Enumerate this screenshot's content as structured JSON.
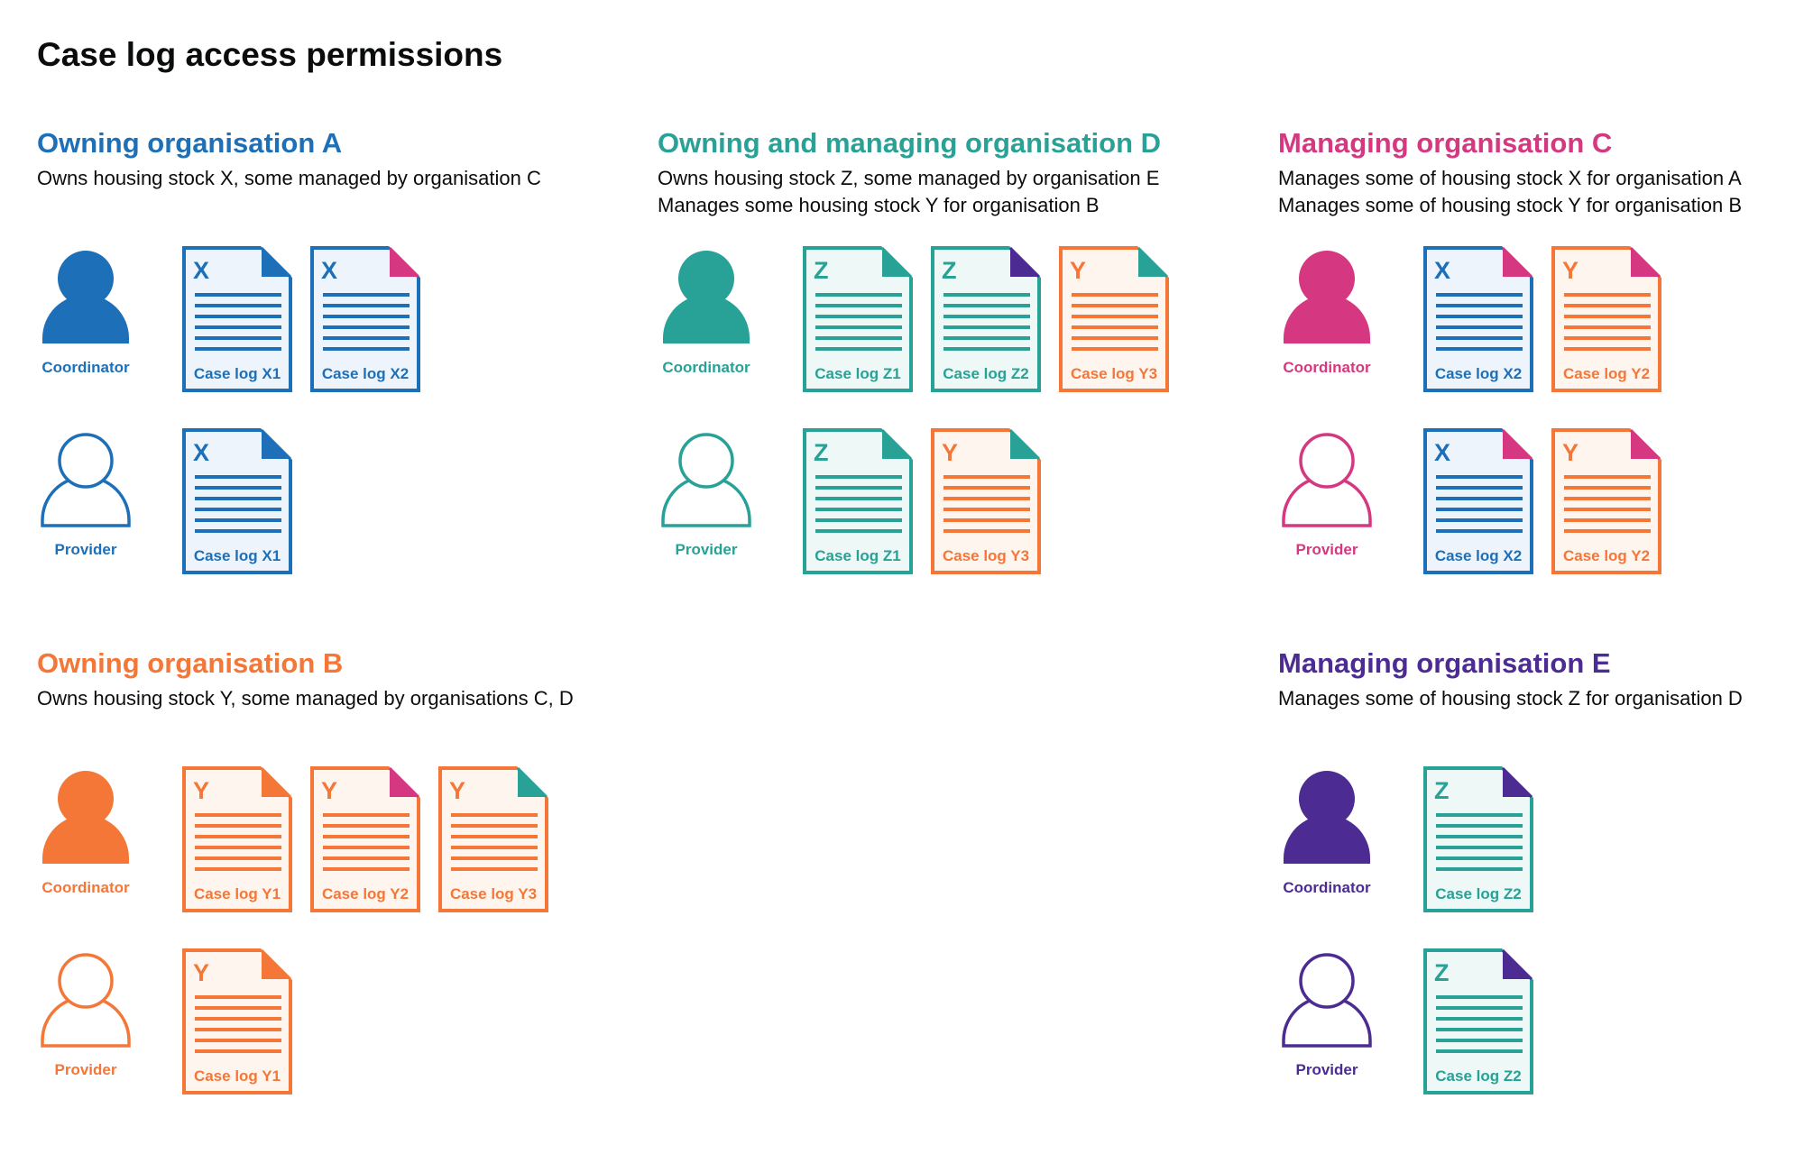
{
  "title": "Case log access permissions",
  "colors": {
    "blue": "#1d70b8",
    "teal": "#28a197",
    "pink": "#d53880",
    "orange": "#f47738",
    "purple": "#4c2c92",
    "tints": {
      "#1d70b8": "#eef4fb",
      "#28a197": "#eef8f6",
      "#d53880": "#fdf0f5",
      "#f47738": "#fef5ef",
      "#4c2c92": "#f2eff8"
    }
  },
  "sections": [
    {
      "heading": "Owning organisation A",
      "color": "#1d70b8",
      "description": [
        "Owns housing stock X, some managed by organisation C"
      ],
      "roles": [
        {
          "label": "Coordinator",
          "icon": "person-filled",
          "docs": [
            {
              "letter": "X",
              "label": "Case log X1",
              "color": "#1d70b8",
              "corner": "#1d70b8"
            },
            {
              "letter": "X",
              "label": "Case log X2",
              "color": "#1d70b8",
              "corner": "#d53880"
            }
          ]
        },
        {
          "label": "Provider",
          "icon": "person-outline",
          "docs": [
            {
              "letter": "X",
              "label": "Case log X1",
              "color": "#1d70b8",
              "corner": "#1d70b8"
            }
          ]
        }
      ]
    },
    {
      "heading": "Owning and managing organisation D",
      "color": "#28a197",
      "description": [
        "Owns housing stock Z, some managed by organisation E",
        "Manages some housing stock Y for organisation B"
      ],
      "roles": [
        {
          "label": "Coordinator",
          "icon": "person-filled",
          "docs": [
            {
              "letter": "Z",
              "label": "Case log Z1",
              "color": "#28a197",
              "corner": "#28a197"
            },
            {
              "letter": "Z",
              "label": "Case log Z2",
              "color": "#28a197",
              "corner": "#4c2c92"
            },
            {
              "letter": "Y",
              "label": "Case log Y3",
              "color": "#f47738",
              "corner": "#28a197"
            }
          ]
        },
        {
          "label": "Provider",
          "icon": "person-outline",
          "docs": [
            {
              "letter": "Z",
              "label": "Case log Z1",
              "color": "#28a197",
              "corner": "#28a197"
            },
            {
              "letter": "Y",
              "label": "Case log Y3",
              "color": "#f47738",
              "corner": "#28a197"
            }
          ]
        }
      ]
    },
    {
      "heading": "Managing organisation C",
      "color": "#d53880",
      "description": [
        "Manages some of housing stock X for organisation A",
        "Manages some of housing stock Y for organisation B"
      ],
      "roles": [
        {
          "label": "Coordinator",
          "icon": "person-filled",
          "docs": [
            {
              "letter": "X",
              "label": "Case log X2",
              "color": "#1d70b8",
              "corner": "#d53880"
            },
            {
              "letter": "Y",
              "label": "Case log Y2",
              "color": "#f47738",
              "corner": "#d53880"
            }
          ]
        },
        {
          "label": "Provider",
          "icon": "person-outline",
          "docs": [
            {
              "letter": "X",
              "label": "Case log X2",
              "color": "#1d70b8",
              "corner": "#d53880"
            },
            {
              "letter": "Y",
              "label": "Case log Y2",
              "color": "#f47738",
              "corner": "#d53880"
            }
          ]
        }
      ]
    },
    {
      "heading": "Owning organisation B",
      "color": "#f47738",
      "description": [
        "Owns housing stock Y, some managed by organisations C, D"
      ],
      "roles": [
        {
          "label": "Coordinator",
          "icon": "person-filled",
          "docs": [
            {
              "letter": "Y",
              "label": "Case log Y1",
              "color": "#f47738",
              "corner": "#f47738"
            },
            {
              "letter": "Y",
              "label": "Case log Y2",
              "color": "#f47738",
              "corner": "#d53880"
            },
            {
              "letter": "Y",
              "label": "Case log Y3",
              "color": "#f47738",
              "corner": "#28a197"
            }
          ]
        },
        {
          "label": "Provider",
          "icon": "person-outline",
          "docs": [
            {
              "letter": "Y",
              "label": "Case log Y1",
              "color": "#f47738",
              "corner": "#f47738"
            }
          ]
        }
      ]
    },
    {
      "heading": "Managing organisation E",
      "color": "#4c2c92",
      "description": [
        "Manages some of housing stock Z for organisation D"
      ],
      "roles": [
        {
          "label": "Coordinator",
          "icon": "person-filled",
          "docs": [
            {
              "letter": "Z",
              "label": "Case log Z2",
              "color": "#28a197",
              "corner": "#4c2c92"
            }
          ]
        },
        {
          "label": "Provider",
          "icon": "person-outline",
          "docs": [
            {
              "letter": "Z",
              "label": "Case log Z2",
              "color": "#28a197",
              "corner": "#4c2c92"
            }
          ]
        }
      ]
    }
  ]
}
